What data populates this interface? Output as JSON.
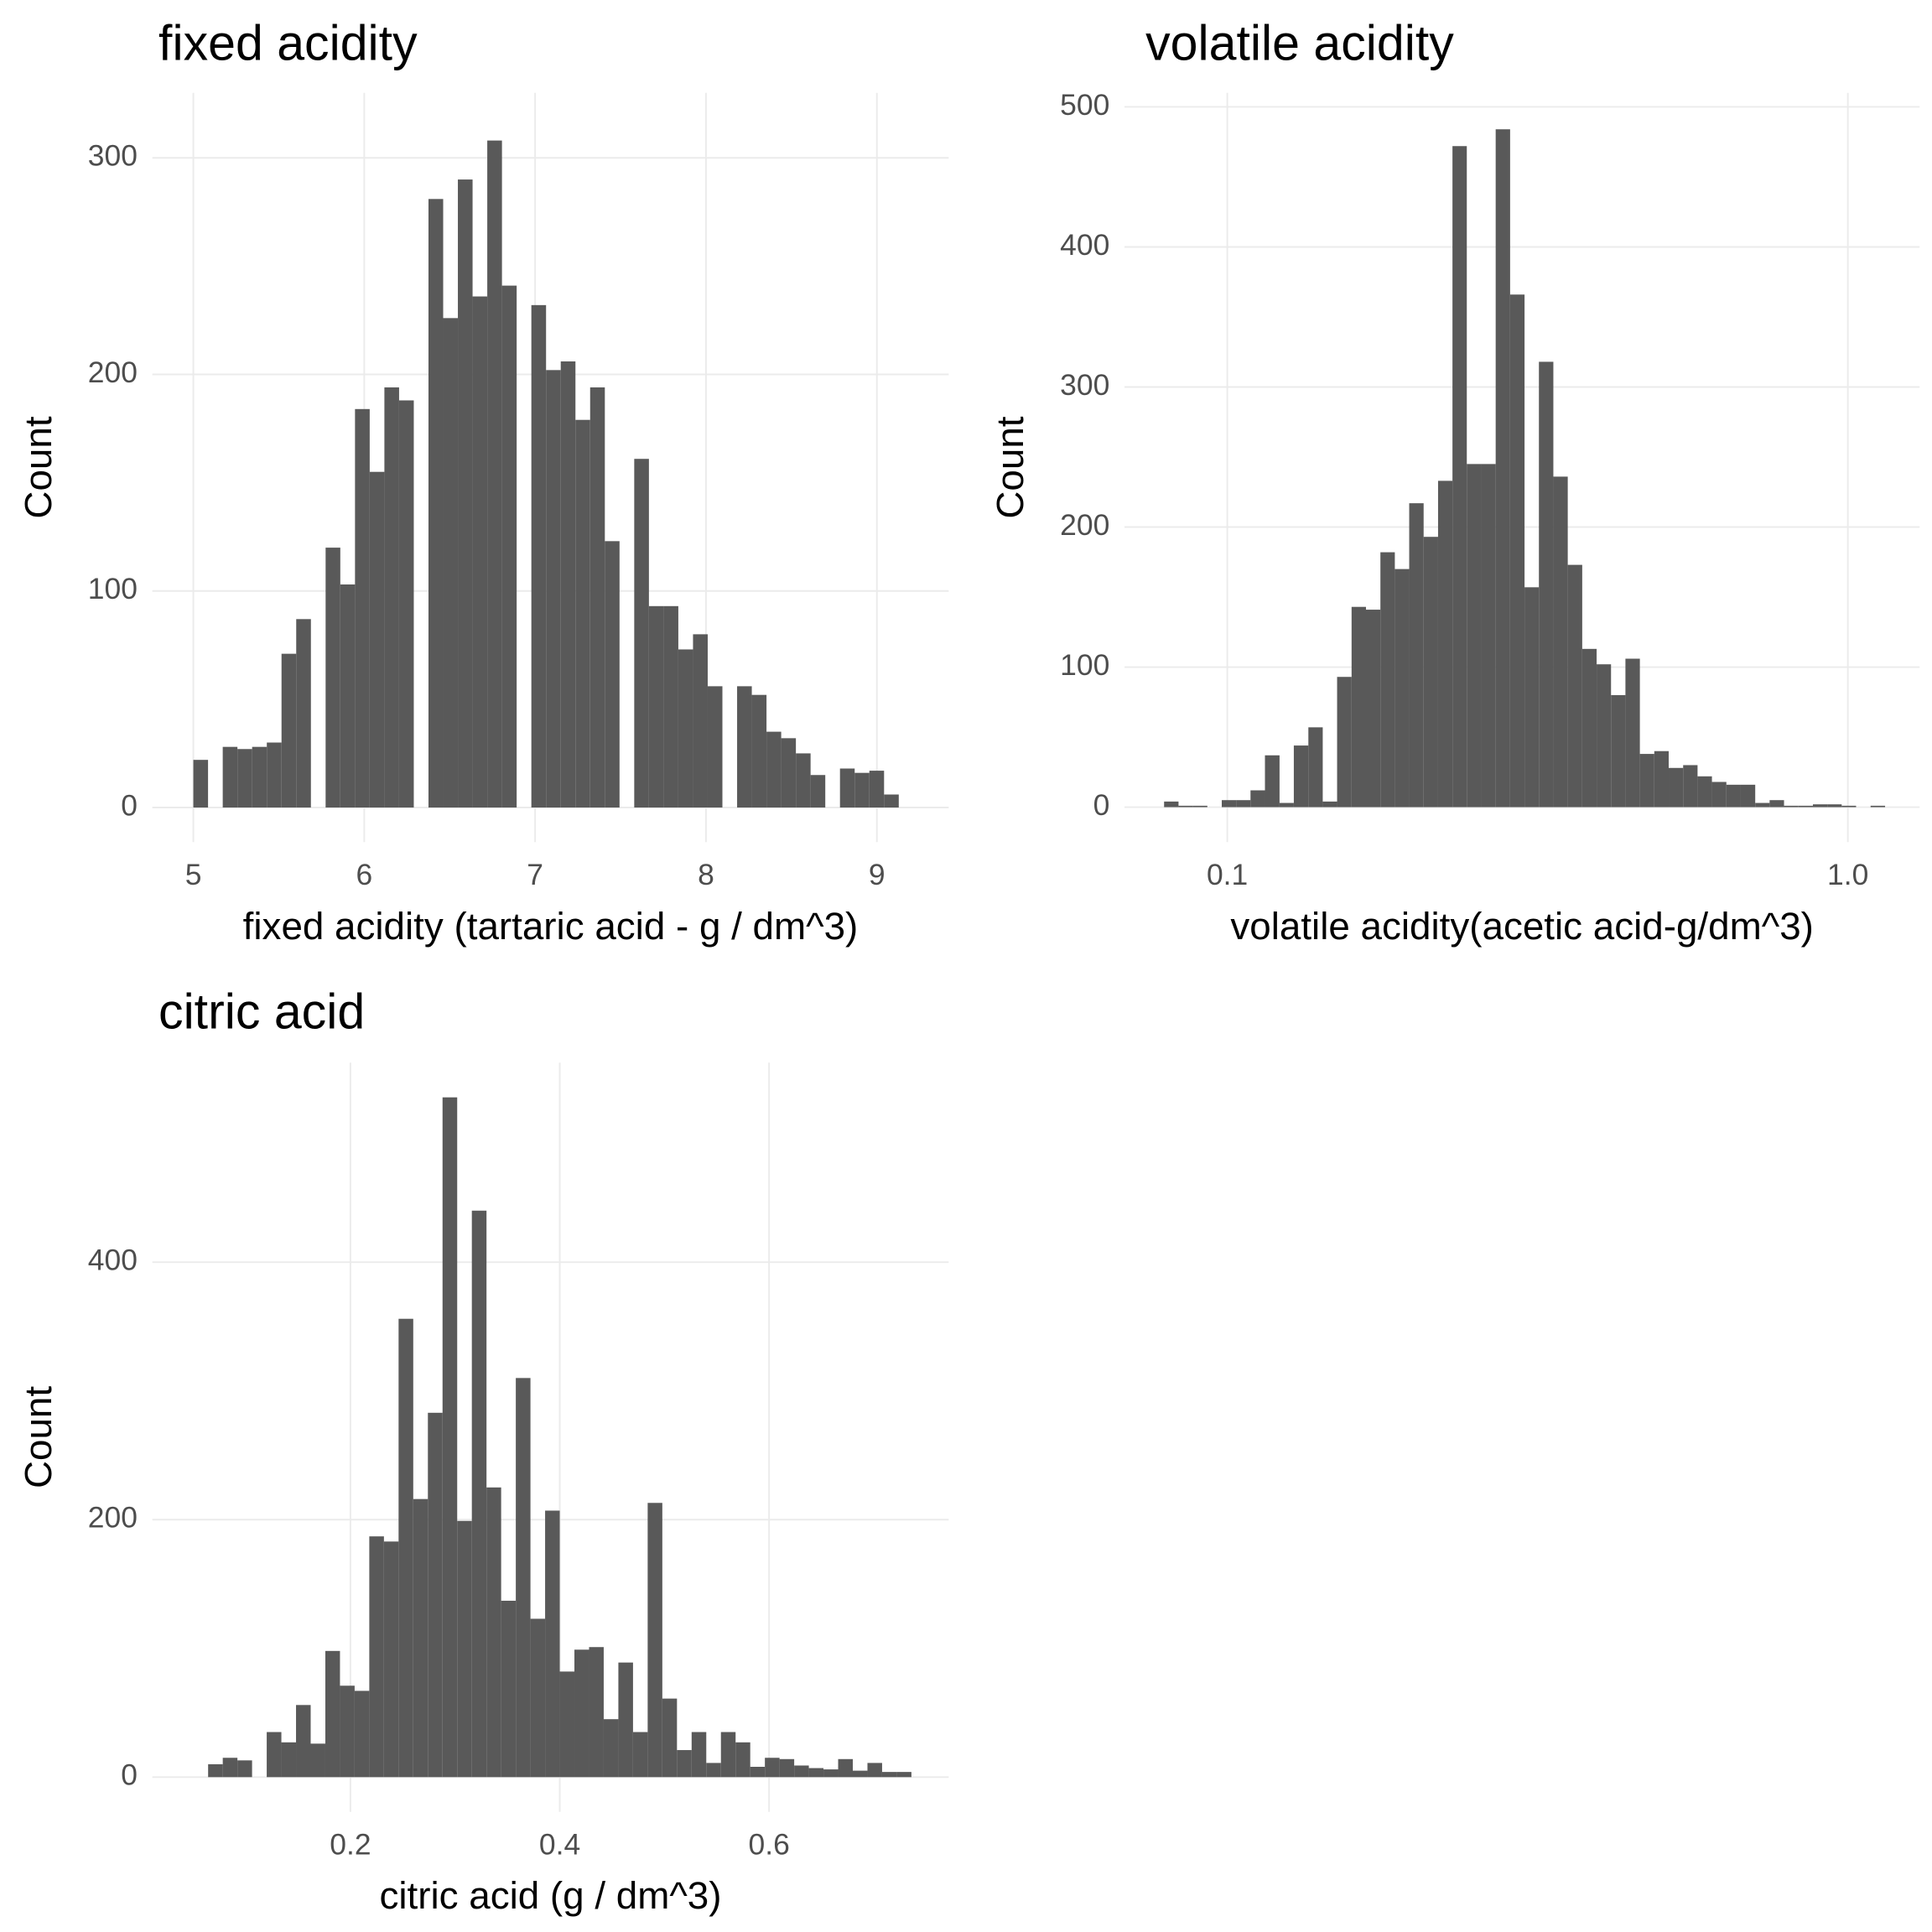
{
  "chart_data": [
    {
      "type": "histogram",
      "title": "fixed acidity",
      "x_label": "fixed acidity (tartaric acid - g / dm^3)",
      "y_label": "Count",
      "color": "#595959",
      "grid": true,
      "bins": [
        5,
        5.086,
        5.172,
        5.258,
        5.344,
        5.43,
        5.516,
        5.602,
        5.688,
        5.774,
        5.86,
        5.946,
        6.032,
        6.118,
        6.204,
        6.29,
        6.376,
        6.462,
        6.548,
        6.634,
        6.72,
        6.806,
        6.892,
        6.978,
        7.064,
        7.15,
        7.236,
        7.322,
        7.408,
        7.494,
        7.58,
        7.666,
        7.752,
        7.838,
        7.924,
        8.01,
        8.096,
        8.182,
        8.268,
        8.354,
        8.44,
        8.526,
        8.612,
        8.698,
        8.784,
        8.87,
        8.956,
        9.042,
        9.128
      ],
      "counts": [
        22,
        0,
        28,
        27,
        28,
        30,
        71,
        87,
        0,
        120,
        103,
        184,
        155,
        194,
        188,
        0,
        281,
        226,
        290,
        236,
        308,
        241,
        0,
        232,
        202,
        206,
        179,
        194,
        123,
        0,
        161,
        93,
        93,
        73,
        80,
        56,
        0,
        56,
        52,
        35,
        32,
        25,
        15,
        0,
        18,
        16,
        17,
        6
      ],
      "xlim": [
        4.76,
        9.42
      ],
      "ylim": [
        -16,
        330
      ],
      "xticks": [
        5,
        6,
        7,
        8,
        9
      ],
      "yticks": [
        0,
        100,
        200,
        300
      ]
    },
    {
      "type": "histogram",
      "title": "volatile acidity",
      "x_label": "volatile acidity(acetic acid-g/dm^3)",
      "y_label": "Count",
      "color": "#595959",
      "grid": true,
      "xscale": "log",
      "bins": [
        0.0791,
        0.08345,
        0.08803,
        0.09287,
        0.09797,
        0.1034,
        0.109,
        0.115,
        0.1214,
        0.128,
        0.1351,
        0.1425,
        0.1503,
        0.1586,
        0.1673,
        0.1765,
        0.1862,
        0.1964,
        0.2072,
        0.2186,
        0.2306,
        0.2432,
        0.2566,
        0.2707,
        0.2856,
        0.3013,
        0.3178,
        0.3353,
        0.3537,
        0.3732,
        0.3937,
        0.4153,
        0.4381,
        0.4622,
        0.4876,
        0.5144,
        0.5427,
        0.5725,
        0.6039,
        0.6371,
        0.6721,
        0.7091,
        0.748,
        0.7891,
        0.8325,
        0.8783,
        0.9265,
        0.9774,
        1.031,
        1.088,
        1.148
      ],
      "counts": [
        4,
        1,
        1,
        0,
        5,
        5,
        12,
        37,
        3,
        44,
        57,
        4,
        93,
        143,
        141,
        182,
        170,
        217,
        193,
        233,
        472,
        245,
        245,
        484,
        366,
        157,
        318,
        236,
        173,
        113,
        102,
        80,
        106,
        38,
        40,
        28,
        30,
        22,
        18,
        16,
        16,
        3,
        5,
        1,
        1,
        2,
        2,
        1,
        0,
        1
      ],
      "xlim": [
        0.0683,
        1.305
      ],
      "ylim": [
        -25,
        510
      ],
      "xticks": [
        0.1,
        {
          "value": 1,
          "label": "1.0"
        }
      ],
      "yticks": [
        0,
        100,
        200,
        300,
        400,
        500
      ]
    },
    {
      "type": "histogram",
      "title": "citric acid",
      "x_label": "citric acid (g / dm^3)",
      "y_label": "Count",
      "color": "#595959",
      "grid": true,
      "bins": [
        0.064,
        0.078,
        0.092,
        0.106,
        0.12,
        0.134,
        0.148,
        0.162,
        0.176,
        0.19,
        0.204,
        0.218,
        0.232,
        0.246,
        0.26,
        0.274,
        0.288,
        0.302,
        0.316,
        0.33,
        0.344,
        0.358,
        0.372,
        0.386,
        0.4,
        0.414,
        0.428,
        0.442,
        0.456,
        0.47,
        0.484,
        0.498,
        0.512,
        0.526,
        0.54,
        0.554,
        0.568,
        0.582,
        0.596,
        0.61,
        0.624,
        0.638,
        0.652,
        0.666,
        0.68,
        0.694,
        0.708,
        0.722,
        0.736
      ],
      "counts": [
        10,
        15,
        13,
        0,
        35,
        27,
        56,
        26,
        98,
        71,
        67,
        187,
        183,
        356,
        216,
        283,
        528,
        199,
        440,
        225,
        137,
        310,
        123,
        207,
        82,
        99,
        101,
        45,
        89,
        35,
        213,
        61,
        21,
        35,
        11,
        35,
        27,
        8,
        15,
        14,
        9,
        7,
        6,
        14,
        5,
        11,
        4,
        4
      ],
      "xlim": [
        0.0107,
        0.7716
      ],
      "ylim": [
        -27,
        555
      ],
      "xticks": [
        0.2,
        0.4,
        0.6
      ],
      "yticks": [
        0,
        200,
        400
      ]
    }
  ]
}
